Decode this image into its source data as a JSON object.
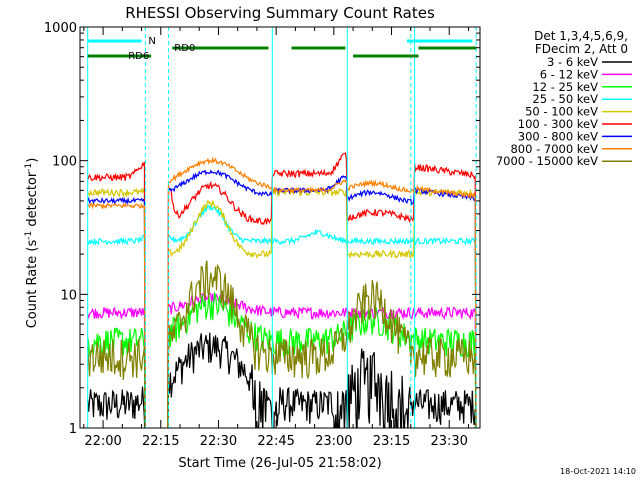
{
  "chart_data": {
    "type": "line",
    "title": "RHESSI Observing Summary Count Rates",
    "xlabel": "Start Time (26-Jul-05 21:58:02)",
    "ylabel": "Count Rate (s",
    "ylabel_sup": "-1",
    "ylabel_mid": " detector",
    "ylabel_sup2": "-1",
    "ylabel_end": ")",
    "yscale": "log",
    "ylim": [
      1,
      1000
    ],
    "xlim_minutes": [
      -6,
      98
    ],
    "xticks": [
      {
        "m": 0,
        "label": "22:00"
      },
      {
        "m": 15,
        "label": "22:15"
      },
      {
        "m": 30,
        "label": "22:30"
      },
      {
        "m": 45,
        "label": "22:45"
      },
      {
        "m": 60,
        "label": "23:00"
      },
      {
        "m": 75,
        "label": "23:15"
      },
      {
        "m": 90,
        "label": "23:30"
      }
    ],
    "yticks": [
      {
        "v": 1,
        "label": "1"
      },
      {
        "v": 10,
        "label": "10"
      },
      {
        "v": 100,
        "label": "100"
      },
      {
        "v": 1000,
        "label": "1000"
      }
    ],
    "legend_header": [
      "Det 1,3,4,5,6,9,",
      "FDecim 2, Att 0"
    ],
    "series": [
      {
        "name": "3 - 6 keV",
        "color": "#000000"
      },
      {
        "name": "6 - 12 keV",
        "color": "#ff00ff"
      },
      {
        "name": "12 - 25 keV",
        "color": "#00ff00"
      },
      {
        "name": "25 - 50 keV",
        "color": "#00ffff"
      },
      {
        "name": "50 - 100 keV",
        "color": "#d4c800"
      },
      {
        "name": "100 - 300 keV",
        "color": "#ff0000"
      },
      {
        "name": "300 - 800 keV",
        "color": "#0000ff"
      },
      {
        "name": "800 - 7000 keV",
        "color": "#ff8000"
      },
      {
        "name": "7000 - 15000 keV",
        "color": "#808000"
      }
    ],
    "bars": {
      "color": "#008000",
      "rd0_label": "RD0",
      "rd6_label": "RD6",
      "rd0_segments": [
        [
          18,
          43
        ],
        [
          49,
          63
        ],
        [
          82,
          97
        ]
      ],
      "rd6_segments": [
        [
          -4,
          12.5
        ],
        [
          65,
          82
        ]
      ],
      "n_label": "N",
      "n_color": "#00ffff",
      "n_segments": [
        [
          -4,
          10
        ],
        [
          79,
          96
        ]
      ]
    },
    "night_solid_lines": [
      -4,
      44,
      63.5,
      81
    ],
    "night_dashed_lines": [
      11,
      17,
      80,
      97
    ]
  },
  "footer_date": "18-Oct-2021 14:10"
}
